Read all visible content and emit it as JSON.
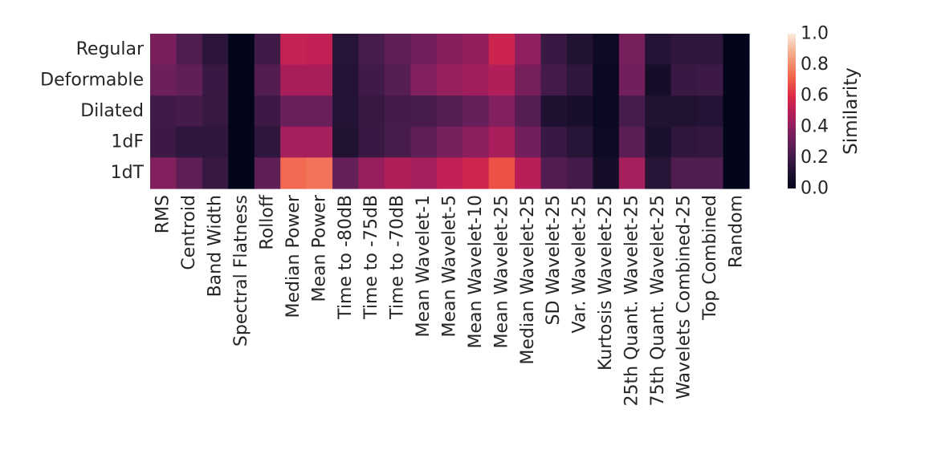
{
  "chart_data": {
    "type": "heatmap",
    "rows": [
      "Regular",
      "Deformable",
      "Dilated",
      "1dF",
      "1dT"
    ],
    "columns": [
      "RMS",
      "Centroid",
      "Band Width",
      "Spectral Flatness",
      "Rolloff",
      "Median Power",
      "Mean Power",
      "Time to -80dB",
      "Time to -75dB",
      "Time to -70dB",
      "Mean Wavelet-1",
      "Mean Wavelet-5",
      "Mean Wavelet-10",
      "Mean Wavelet-25",
      "Median Wavelet-25",
      "SD Wavelet-25",
      "Var. Wavelet-25",
      "Kurtosis Wavelet-25",
      "25th Quant. Wavelet-25",
      "75th Quant. Wavelet-25",
      "Wavelets Combined-25",
      "Top Combined",
      "Random"
    ],
    "values": [
      [
        0.35,
        0.24,
        0.14,
        0.0,
        0.2,
        0.53,
        0.52,
        0.13,
        0.22,
        0.28,
        0.33,
        0.38,
        0.41,
        0.55,
        0.4,
        0.18,
        0.11,
        0.04,
        0.34,
        0.12,
        0.15,
        0.15,
        0.0
      ],
      [
        0.32,
        0.29,
        0.18,
        0.0,
        0.25,
        0.46,
        0.46,
        0.12,
        0.2,
        0.26,
        0.37,
        0.42,
        0.44,
        0.48,
        0.34,
        0.21,
        0.15,
        0.03,
        0.33,
        0.07,
        0.18,
        0.19,
        0.0
      ],
      [
        0.2,
        0.21,
        0.17,
        0.0,
        0.19,
        0.31,
        0.31,
        0.12,
        0.17,
        0.21,
        0.22,
        0.26,
        0.3,
        0.37,
        0.26,
        0.1,
        0.08,
        0.03,
        0.22,
        0.11,
        0.11,
        0.12,
        0.0
      ],
      [
        0.19,
        0.15,
        0.15,
        0.0,
        0.15,
        0.45,
        0.45,
        0.11,
        0.18,
        0.22,
        0.28,
        0.34,
        0.39,
        0.46,
        0.33,
        0.18,
        0.13,
        0.04,
        0.27,
        0.09,
        0.15,
        0.16,
        0.0
      ],
      [
        0.37,
        0.28,
        0.17,
        0.0,
        0.28,
        0.73,
        0.75,
        0.3,
        0.42,
        0.48,
        0.45,
        0.52,
        0.56,
        0.68,
        0.5,
        0.25,
        0.21,
        0.07,
        0.45,
        0.13,
        0.24,
        0.24,
        0.0
      ]
    ],
    "colorbar": {
      "label": "Similarity",
      "range": [
        0.0,
        1.0
      ],
      "ticks": [
        "0.0",
        "0.2",
        "0.4",
        "0.6",
        "0.8",
        "1.0"
      ],
      "colormap": "rocket"
    },
    "grid": false
  }
}
